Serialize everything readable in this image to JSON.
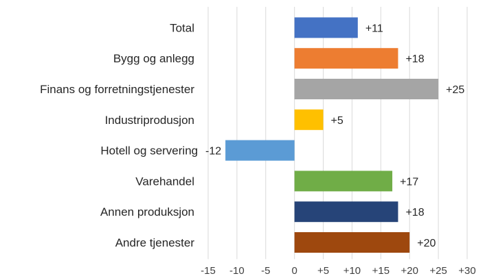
{
  "chart_data": {
    "type": "bar",
    "orientation": "horizontal",
    "categories": [
      "Total",
      "Bygg og anlegg",
      "Finans og forretningstjenester",
      "Industriprodusjon",
      "Hotell og servering",
      "Varehandel",
      "Annen produksjon",
      "Andre tjenester"
    ],
    "values": [
      11,
      18,
      25,
      5,
      -12,
      17,
      18,
      20
    ],
    "data_labels": [
      "+11",
      "+18",
      "+25",
      "+5",
      "-12",
      "+17",
      "+18",
      "+20"
    ],
    "colors": [
      "#4472C4",
      "#ED7D31",
      "#A5A5A5",
      "#FFC000",
      "#5B9BD5",
      "#70AD47",
      "#264478",
      "#9E480E"
    ],
    "xticks": [
      -15,
      -10,
      -5,
      0,
      5,
      10,
      15,
      20,
      25,
      30
    ],
    "xtick_labels": [
      "-15",
      "-10",
      "-5",
      "0",
      "+5",
      "+10",
      "+15",
      "+20",
      "+25",
      "+30"
    ],
    "xlim": [
      -15,
      30
    ],
    "grid": true,
    "title": "",
    "xlabel": "",
    "ylabel": ""
  }
}
